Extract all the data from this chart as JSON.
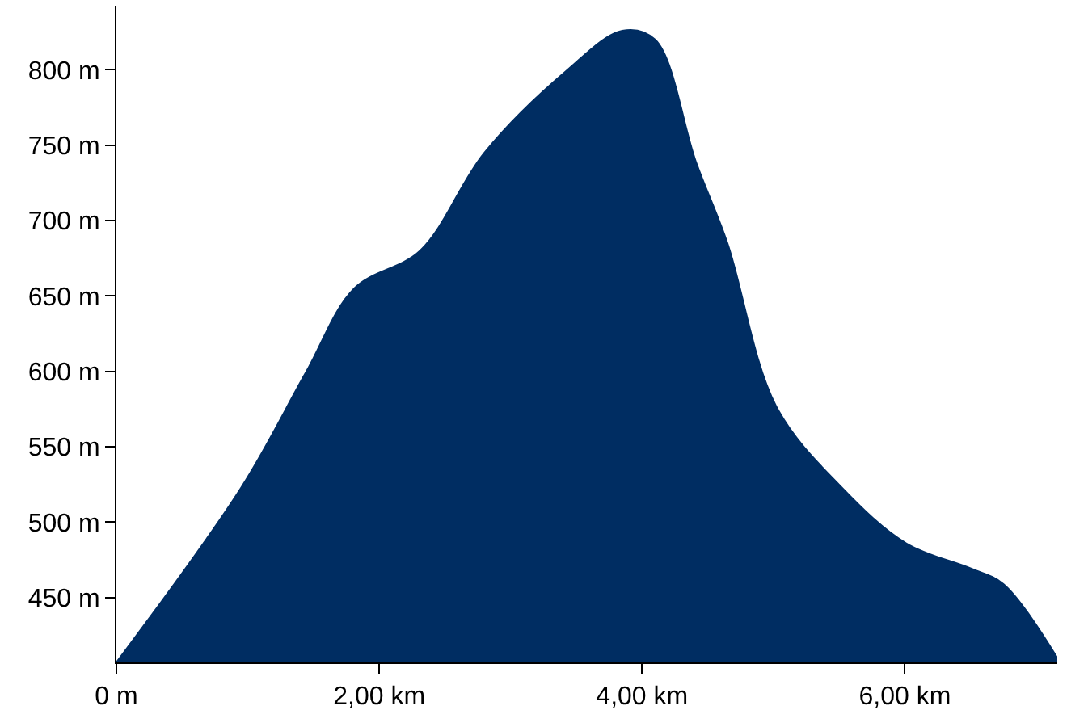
{
  "chart_data": {
    "type": "area",
    "x": [
      0,
      0.95,
      1.44,
      1.81,
      2.31,
      2.8,
      3.42,
      3.85,
      4.1,
      4.41,
      4.65,
      5.02,
      5.52,
      6.01,
      6.51,
      6.75,
      7.16
    ],
    "series": [
      {
        "color": "#002d62",
        "values": [
          407,
          523,
          599,
          655,
          680,
          745,
          799,
          826,
          820,
          739,
          685,
          577,
          523,
          486,
          469,
          459,
          410
        ]
      }
    ],
    "xlim": [
      0,
      7.16
    ],
    "ylim": [
      407,
      842
    ],
    "xticks": [
      {
        "value": 0,
        "label": "0 m"
      },
      {
        "value": 2,
        "label": "2,00 km"
      },
      {
        "value": 4,
        "label": "4,00 km"
      },
      {
        "value": 6,
        "label": "6,00 km"
      }
    ],
    "yticks": [
      {
        "value": 450,
        "label": "450 m"
      },
      {
        "value": 500,
        "label": "500 m"
      },
      {
        "value": 550,
        "label": "550 m"
      },
      {
        "value": 600,
        "label": "600 m"
      },
      {
        "value": 650,
        "label": "650 m"
      },
      {
        "value": 700,
        "label": "700 m"
      },
      {
        "value": 750,
        "label": "750 m"
      },
      {
        "value": 800,
        "label": "800 m"
      }
    ]
  }
}
